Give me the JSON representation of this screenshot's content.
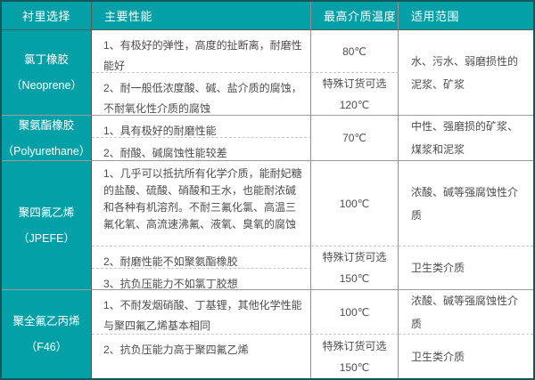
{
  "colors": {
    "accent_teal": "#04a0a8",
    "outer_border": "#11585c",
    "grid_line": "#9b9b9b",
    "dashed_line": "#c6c6c6",
    "body_text": "#4d4d4d",
    "header_text": "#ffffff"
  },
  "table": {
    "headers": [
      "衬里选择",
      "主要性能",
      "最高介质温度",
      "适用范围"
    ],
    "sections": [
      {
        "material": "氯丁橡胶",
        "material_en": "（Neoprene）",
        "rows": [
          {
            "perf": "1、有极好的弹性，高度的扯断离，耐磨性能好",
            "temp": "80℃"
          },
          {
            "perf": "2、耐一般低浓度酸、碱、盐介质的腐蚀，不耐氧化性介质的腐蚀",
            "temp": "特殊订货可选\n120℃"
          }
        ],
        "range": "水、污水、弱磨损性的泥浆、矿浆"
      },
      {
        "material": "聚氨酯橡胶",
        "material_en": "（Polyurethane）",
        "rows": [
          {
            "perf": "1、具有极好的耐磨性能"
          },
          {
            "perf": "2、耐酸、碱腐蚀性能较差"
          }
        ],
        "temp": "70℃",
        "range": "中性、强磨损的矿浆、煤浆和泥浆"
      },
      {
        "material": "聚四氟乙烯",
        "material_en": "（JPEFE）",
        "rows": [
          {
            "perf": "1、几乎可以抵抗所有化学介质，能耐妃糖的盐酸、硫酸、硝酸和王水，也能耐浓碱和各种有机溶剂。不耐三氟化氯、高温三氟化氧、高流速沸氟、液氧、臭氧的腐蚀",
            "temp": "100℃",
            "range": "浓酸、碱等强腐蚀性介质"
          },
          {
            "perf": "2、耐磨性能不如聚氨酯橡胶",
            "temp": "特殊订货可选\n150℃",
            "range": "卫生类介质"
          },
          {
            "perf": "3、抗负压能力不如氯丁胶想"
          }
        ]
      },
      {
        "material": "聚全氟乙丙烯",
        "material_en": "（F46）",
        "rows": [
          {
            "perf": "1、不耐发烟硝酸、丁基锂，其他化学性能与聚四氟乙烯基本相同",
            "temp": "100℃",
            "range": "浓酸、碱等强腐蚀性介质"
          },
          {
            "perf": "2、抗负压能力高于聚四氟乙烯",
            "temp": "特殊订货可选\n150℃",
            "range": "卫生类介质"
          }
        ]
      }
    ]
  }
}
